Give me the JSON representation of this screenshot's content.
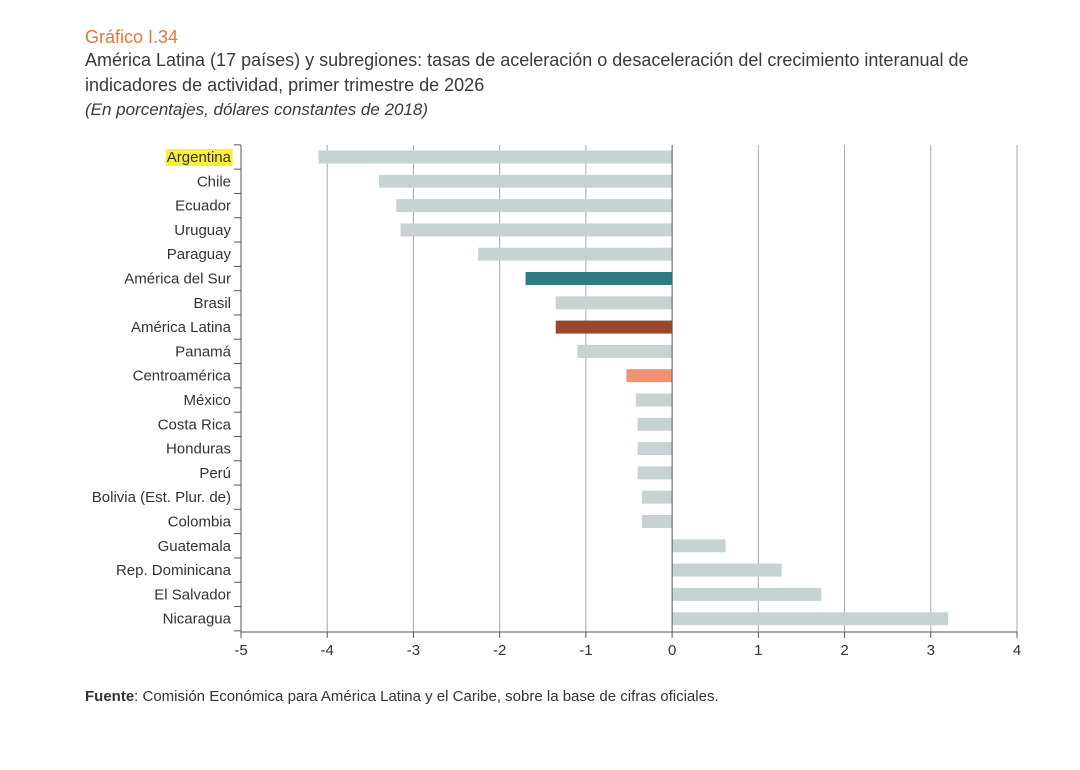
{
  "header": {
    "chart_number": "Gráfico I.34",
    "title": "América Latina (17 países) y subregiones: tasas de aceleración o desaceleración del crecimiento interanual de indicadores de actividad, primer trimestre de 2026",
    "subtitle": "(En porcentajes, dólares constantes de 2018)"
  },
  "footer": {
    "label": "Fuente",
    "text": ":  Comisión Económica para América Latina y el Caribe, sobre la base de cifras oficiales."
  },
  "colors": {
    "default_bar": "#c7d3d3",
    "america_del_sur": "#2e7c82",
    "america_latina": "#97472a",
    "centroamerica": "#f19276",
    "highlight": "#f6f036",
    "grid": "#a8a8a8"
  },
  "chart_data": {
    "type": "bar",
    "orientation": "horizontal",
    "title": "",
    "xlabel": "",
    "ylabel": "",
    "xlim": [
      -5,
      4
    ],
    "xticks": [
      "-5",
      "-4",
      "-3",
      "-2",
      "-1",
      "0",
      "1",
      "2",
      "3",
      "4"
    ],
    "grid": true,
    "highlighted_category": "Argentina",
    "categories": [
      "Argentina",
      "Chile",
      "Ecuador",
      "Uruguay",
      "Paraguay",
      "América del Sur",
      "Brasil",
      "América Latina",
      "Panamá",
      "Centroamérica",
      "México",
      "Costa Rica",
      "Honduras",
      "Perú",
      "Bolivia (Est. Plur. de)",
      "Colombia",
      "Guatemala",
      "Rep. Dominicana",
      "El Salvador",
      "Nicaragua"
    ],
    "values": [
      -4.1,
      -3.4,
      -3.2,
      -3.15,
      -2.25,
      -1.7,
      -1.35,
      -1.35,
      -1.1,
      -0.53,
      -0.42,
      -0.4,
      -0.4,
      -0.4,
      -0.35,
      -0.35,
      0.62,
      1.27,
      1.73,
      3.2
    ],
    "bar_colors": [
      "#c7d3d3",
      "#c7d3d3",
      "#c7d3d3",
      "#c7d3d3",
      "#c7d3d3",
      "#2e7c82",
      "#c7d3d3",
      "#97472a",
      "#c7d3d3",
      "#f19276",
      "#c7d3d3",
      "#c7d3d3",
      "#c7d3d3",
      "#c7d3d3",
      "#c7d3d3",
      "#c7d3d3",
      "#c7d3d3",
      "#c7d3d3",
      "#c7d3d3",
      "#c7d3d3"
    ]
  }
}
